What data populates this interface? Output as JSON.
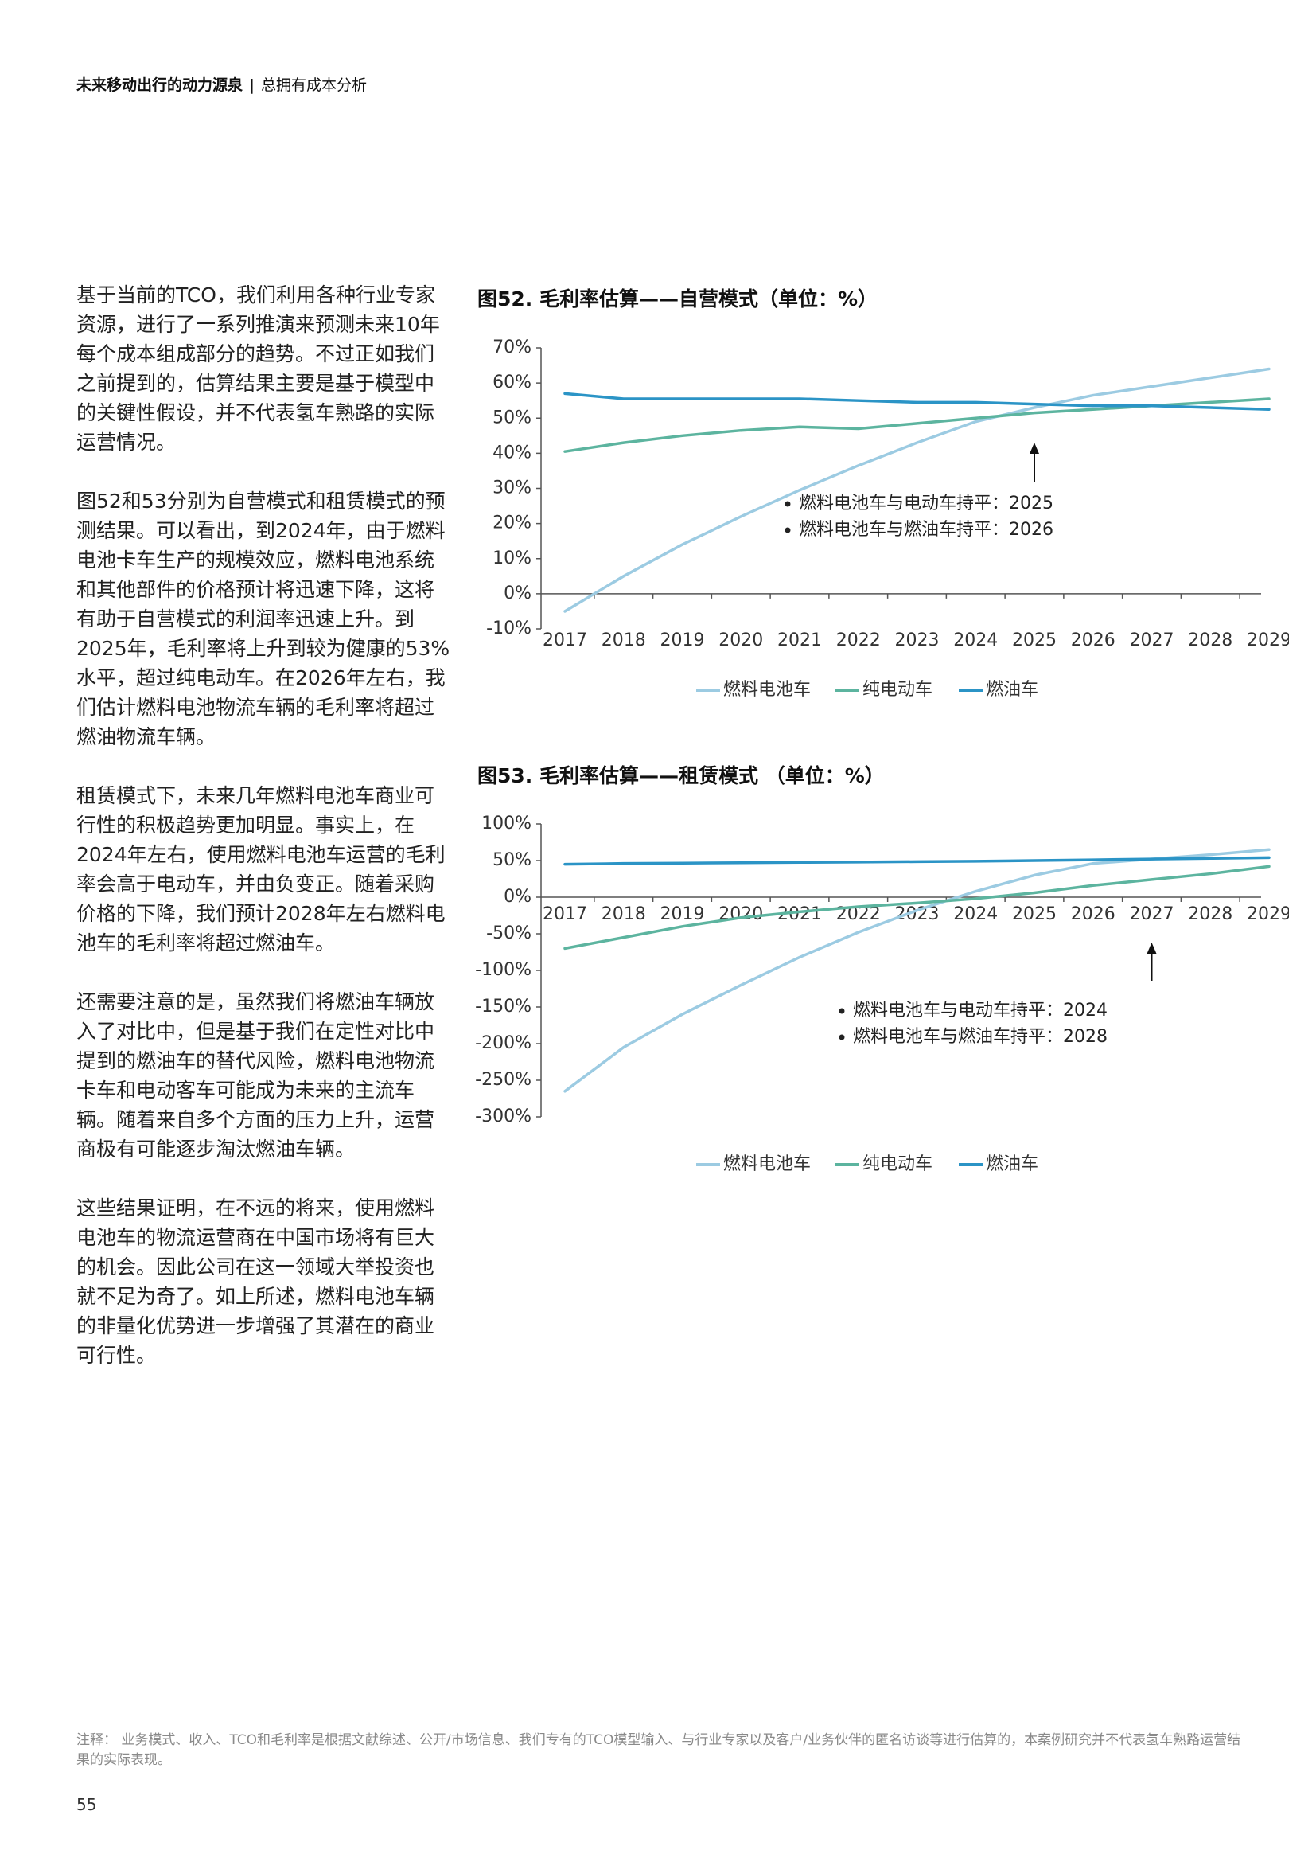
{
  "header": {
    "title": "未来移动出行的动力源泉",
    "separator": "|",
    "section": "总拥有成本分析"
  },
  "body": {
    "paragraphs": [
      "基于当前的TCO，我们利用各种行业专家资源，进行了一系列推演来预测未来10年每个成本组成部分的趋势。不过正如我们之前提到的，估算结果主要是基于模型中的关键性假设，并不代表氢车熟路的实际运营情况。",
      "图52和53分别为自营模式和租赁模式的预测结果。可以看出，到2024年，由于燃料电池卡车生产的规模效应，燃料电池系统和其他部件的价格预计将迅速下降，这将有助于自营模式的利润率迅速上升。到2025年，毛利率将上升到较为健康的53%水平，超过纯电动车。在2026年左右，我们估计燃料电池物流车辆的毛利率将超过燃油物流车辆。",
      "租赁模式下，未来几年燃料电池车商业可行性的积极趋势更加明显。事实上，在2024年左右，使用燃料电池车运营的毛利率会高于电动车，并由负变正。随着采购价格的下降，我们预计2028年左右燃料电池车的毛利率将超过燃油车。",
      "还需要注意的是，虽然我们将燃油车辆放入了对比中，但是基于我们在定性对比中提到的燃油车的替代风险，燃料电池物流卡车和电动客车可能成为未来的主流车辆。随着来自多个方面的压力上升，运营商极有可能逐步淘汰燃油车辆。",
      "这些结果证明，在不远的将来，使用燃料电池车的物流运营商在中国市场将有巨大的机会。因此公司在这一领域大举投资也就不足为奇了。如上所述，燃料电池车辆的非量化优势进一步增强了其潜在的商业可行性。"
    ]
  },
  "colors": {
    "fcev": "#9ccbe2",
    "bev": "#5cb49f",
    "ice": "#2b94c6",
    "axis": "#555555",
    "text": "#333333"
  },
  "chart_data": [
    {
      "type": "line",
      "title": "图52. 毛利率估算——自营模式（单位：%）",
      "x": [
        "2017",
        "2018",
        "2019",
        "2020",
        "2021",
        "2022",
        "2023",
        "2024",
        "2025",
        "2026",
        "2027",
        "2028",
        "2029"
      ],
      "series": [
        {
          "name": "燃料电池车",
          "color_key": "fcev",
          "values": [
            -5,
            5,
            14,
            22,
            29.5,
            36.5,
            43,
            49,
            53,
            56.5,
            59,
            61.5,
            64
          ]
        },
        {
          "name": "纯电动车",
          "color_key": "bev",
          "values": [
            40.5,
            43,
            45,
            46.5,
            47.5,
            47,
            48.5,
            50,
            51.5,
            52.5,
            53.5,
            54.5,
            55.5
          ]
        },
        {
          "name": "燃油车",
          "color_key": "ice",
          "values": [
            57,
            55.5,
            55.5,
            55.5,
            55.5,
            55,
            54.5,
            54.5,
            54,
            53.5,
            53.5,
            53,
            52.5
          ]
        }
      ],
      "yticks": [
        "70%",
        "60%",
        "50%",
        "40%",
        "30%",
        "20%",
        "10%",
        "0%",
        "-10%"
      ],
      "ylim": [
        -10,
        70
      ],
      "annotation": {
        "arrow_at_year": "2025",
        "lines": [
          "燃料电池车与电动车持平：2025",
          "燃料电池车与燃油车持平：2026"
        ]
      },
      "legend_position": "bottom"
    },
    {
      "type": "line",
      "title": "图53. 毛利率估算——租赁模式 （单位：%）",
      "x": [
        "2017",
        "2018",
        "2019",
        "2020",
        "2021",
        "2022",
        "2023",
        "2024",
        "2025",
        "2026",
        "2027",
        "2028",
        "2029"
      ],
      "series": [
        {
          "name": "燃料电池车",
          "color_key": "fcev",
          "values": [
            -265,
            -205,
            -160,
            -120,
            -82,
            -48,
            -18,
            8,
            30,
            46,
            52,
            58,
            65
          ]
        },
        {
          "name": "纯电动车",
          "color_key": "bev",
          "values": [
            -70,
            -55,
            -40,
            -28,
            -20,
            -13,
            -8,
            -2,
            6,
            16,
            24,
            32,
            42
          ]
        },
        {
          "name": "燃油车",
          "color_key": "ice",
          "values": [
            45,
            46,
            46.5,
            47,
            47.5,
            48,
            48.5,
            49,
            50,
            51,
            52,
            53,
            54
          ]
        }
      ],
      "yticks": [
        "100%",
        "50%",
        "0%",
        "-50%",
        "-100%",
        "-150%",
        "-200%",
        "-250%",
        "-300%"
      ],
      "ylim": [
        -300,
        100
      ],
      "annotation": {
        "arrow_at_year": "2027",
        "lines": [
          "燃料电池车与电动车持平：2024",
          "燃料电池车与燃油车持平：2028"
        ]
      },
      "legend_position": "bottom"
    }
  ],
  "footnote": "注释：  业务模式、收入、TCO和毛利率是根据文献综述、公开/市场信息、我们专有的TCO模型输入、与行业专家以及客户/业务伙伴的匿名访谈等进行估算的，本案例研究并不代表氢车熟路运营结果的实际表现。",
  "page_number": "55"
}
